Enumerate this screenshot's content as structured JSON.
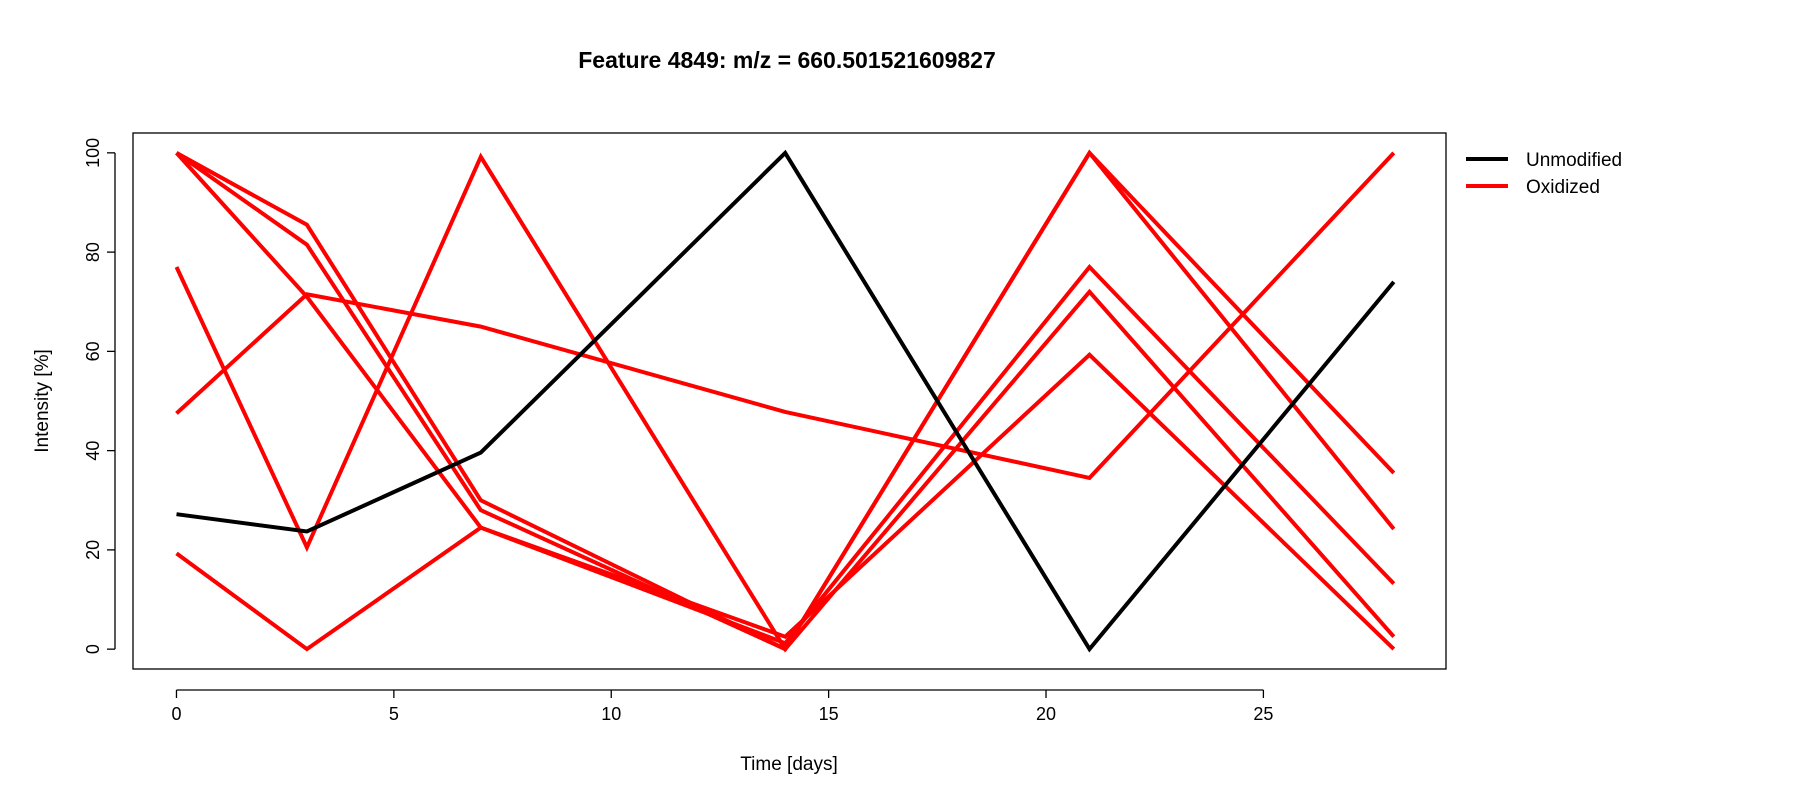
{
  "chart_data": {
    "type": "line",
    "title": "Feature 4849: m/z = 660.501521609827",
    "xlabel": "Time [days]",
    "ylabel": "Intensity [%]",
    "xlim": [
      -1,
      29.2
    ],
    "ylim": [
      -4,
      104
    ],
    "x_ticks": [
      0,
      5,
      10,
      15,
      20,
      25
    ],
    "y_ticks": [
      0,
      20,
      40,
      60,
      80,
      100
    ],
    "grid": false,
    "legend_position": "right-top-outside",
    "legend": [
      {
        "label": "Unmodified",
        "color": "#000000"
      },
      {
        "label": "Oxidized",
        "color": "#ff0000"
      }
    ],
    "x": [
      0,
      3,
      7,
      14,
      21,
      28
    ],
    "series": [
      {
        "group": "Unmodified",
        "color": "#000000",
        "values": [
          27.2,
          23.7,
          39.6,
          100,
          0,
          74.0
        ]
      },
      {
        "group": "Oxidized",
        "color": "#ff0000",
        "values": [
          100,
          85.5,
          30.0,
          0,
          100,
          35.5
        ]
      },
      {
        "group": "Oxidized",
        "color": "#ff0000",
        "values": [
          100,
          81.5,
          28.0,
          0,
          100,
          24.2
        ]
      },
      {
        "group": "Oxidized",
        "color": "#ff0000",
        "values": [
          100,
          71.0,
          24.5,
          1.2,
          77.0,
          13.2
        ]
      },
      {
        "group": "Oxidized",
        "color": "#ff0000",
        "values": [
          77.0,
          20.5,
          99.2,
          0,
          72.0,
          2.5
        ]
      },
      {
        "group": "Oxidized",
        "color": "#ff0000",
        "values": [
          47.5,
          71.5,
          65.0,
          47.8,
          34.5,
          100
        ]
      },
      {
        "group": "Oxidized",
        "color": "#ff0000",
        "values": [
          19.3,
          0,
          24.5,
          2.5,
          59.3,
          0
        ]
      }
    ]
  }
}
